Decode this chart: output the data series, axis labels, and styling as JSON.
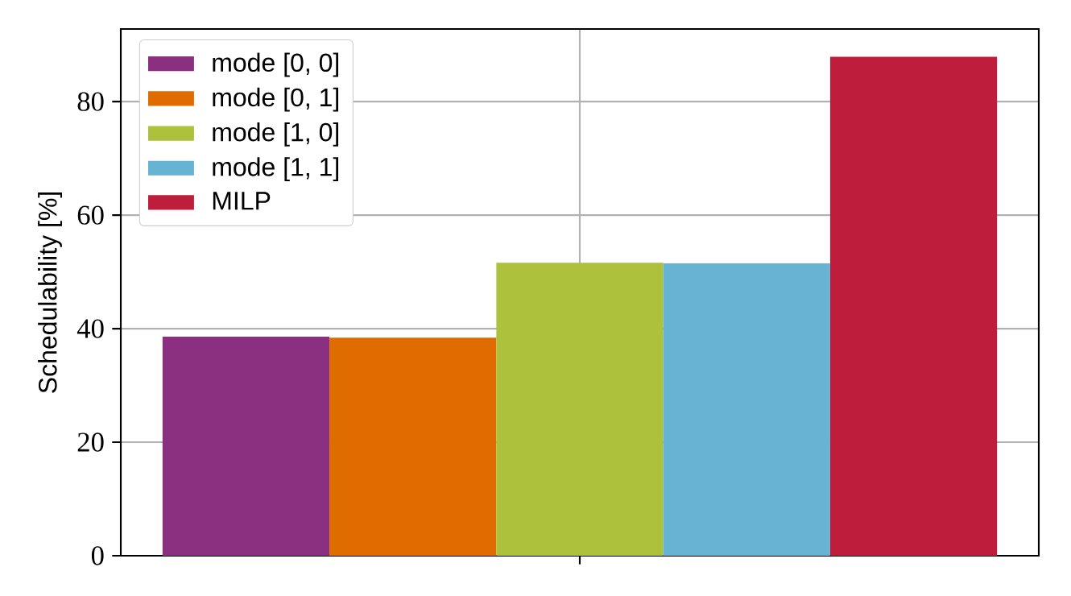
{
  "chart_data": {
    "type": "bar",
    "ylabel": "Schedulability [%]",
    "categories": [
      null
    ],
    "series": [
      {
        "name": "mode [0, 0]",
        "color": "#8b2f80",
        "values": [
          38.6
        ]
      },
      {
        "name": "mode [0, 1]",
        "color": "#e06c00",
        "values": [
          38.4
        ]
      },
      {
        "name": "mode [1, 0]",
        "color": "#adc13c",
        "values": [
          51.6
        ]
      },
      {
        "name": "mode [1, 1]",
        "color": "#66b3d4",
        "values": [
          51.5
        ]
      },
      {
        "name": "MILP",
        "color": "#be1e3c",
        "values": [
          87.9
        ]
      }
    ],
    "ylim": [
      0,
      92.8
    ],
    "yticks": [
      0,
      20,
      40,
      60,
      80
    ],
    "grid": true,
    "legend": "top left"
  }
}
